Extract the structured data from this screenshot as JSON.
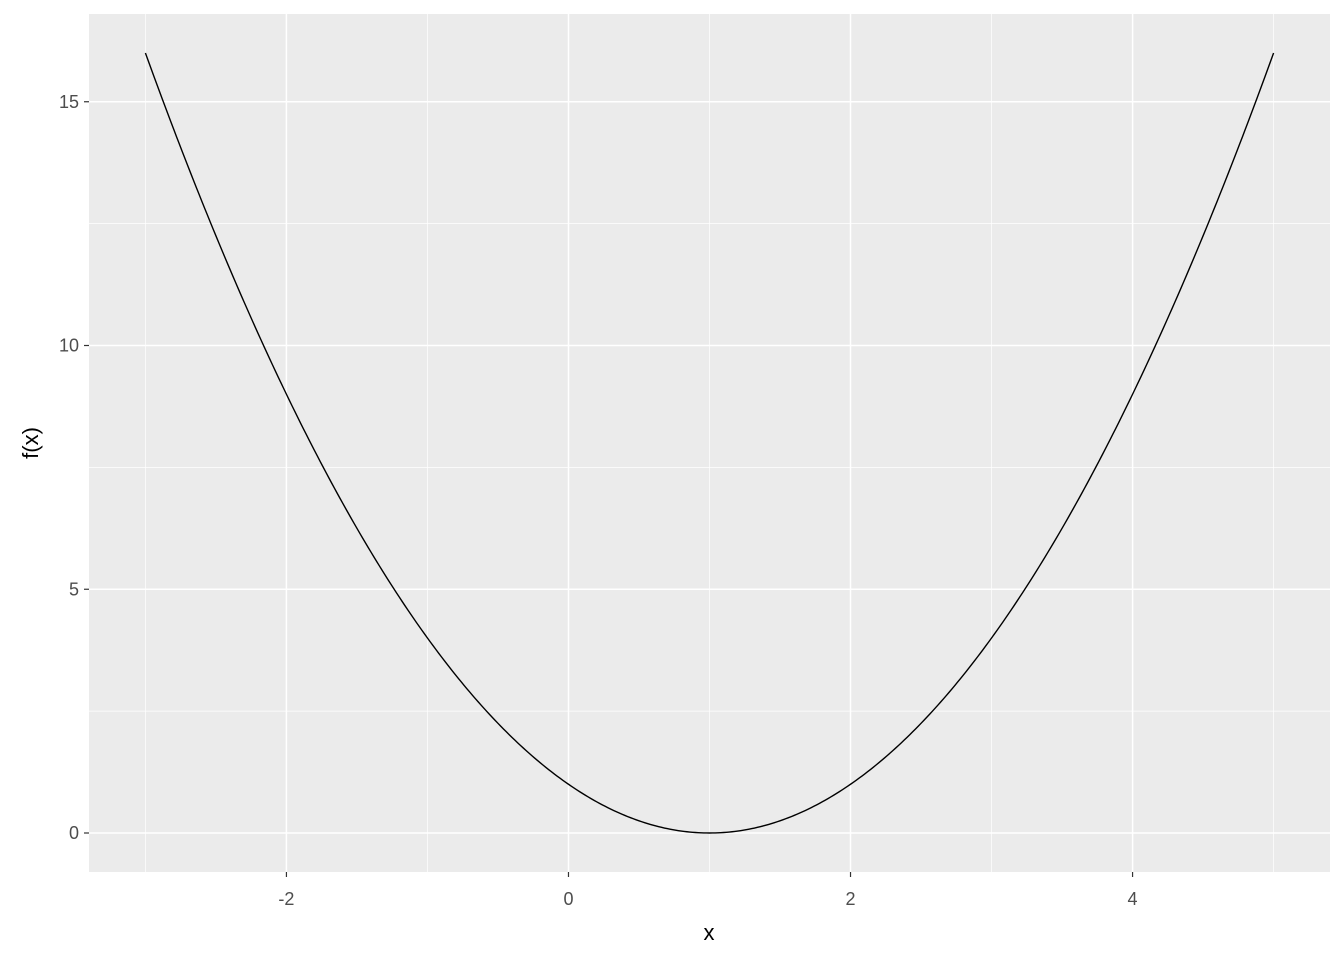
{
  "chart_data": {
    "type": "line",
    "title": "",
    "xlabel": "x",
    "ylabel": "f(x)",
    "xlim": [
      -3.4,
      5.4
    ],
    "ylim": [
      -0.8,
      16.8
    ],
    "x_ticks": [
      -2,
      0,
      2,
      4
    ],
    "x_tick_labels": [
      "-2",
      "0",
      "2",
      "4"
    ],
    "y_ticks": [
      0,
      5,
      10,
      15
    ],
    "y_tick_labels": [
      "0",
      "5",
      "10",
      "15"
    ],
    "grid": true,
    "legend": "none",
    "series": [
      {
        "x_range": [
          -3,
          5
        ],
        "x": [
          -3,
          -2,
          -1,
          0,
          1,
          2,
          3,
          4,
          5
        ],
        "y": [
          16,
          9,
          4,
          1,
          0,
          1,
          4,
          9,
          16
        ],
        "color": "#000000"
      }
    ],
    "colors": {
      "panel": "#EBEBEB",
      "grid": "#FFFFFF",
      "tick_text": "#4D4D4D",
      "line": "#000000"
    }
  }
}
